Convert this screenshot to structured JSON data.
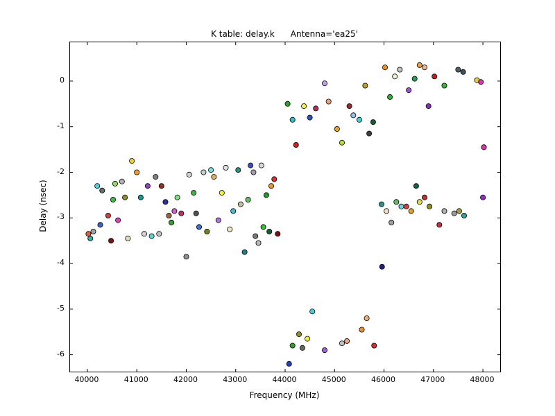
{
  "figure": {
    "title": "K table: delay.k      Antenna='ea25'",
    "xlabel": "Frequency (MHz)",
    "ylabel": "Delay (nsec)"
  },
  "chart_data": {
    "type": "scatter",
    "title": "K table: delay.k      Antenna='ea25'",
    "xlabel": "Frequency (MHz)",
    "ylabel": "Delay (nsec)",
    "xlim": [
      39650,
      48350
    ],
    "ylim": [
      -6.37,
      0.85
    ],
    "xticks": [
      40000,
      41000,
      42000,
      43000,
      44000,
      45000,
      46000,
      47000,
      48000
    ],
    "yticks": [
      0,
      -1,
      -2,
      -3,
      -4,
      -5,
      -6
    ],
    "grid": false,
    "legend": "none",
    "background": "#ffffff",
    "frame_color": "#000000",
    "marker_edge": "#000000",
    "points": [
      [
        40020,
        -3.35,
        "#e06030"
      ],
      [
        40060,
        -3.45,
        "#30b0a0"
      ],
      [
        40120,
        -3.3,
        "#a0a0a0"
      ],
      [
        40200,
        -2.3,
        "#50d0e0"
      ],
      [
        40260,
        -3.15,
        "#4060c0"
      ],
      [
        40300,
        -2.4,
        "#607070"
      ],
      [
        40420,
        -2.95,
        "#d04040"
      ],
      [
        40480,
        -3.5,
        "#801010"
      ],
      [
        40520,
        -2.6,
        "#40c040"
      ],
      [
        40560,
        -2.25,
        "#90e060"
      ],
      [
        40620,
        -3.05,
        "#e040c0"
      ],
      [
        40700,
        -2.2,
        "#b0b0b0"
      ],
      [
        40760,
        -2.55,
        "#909030"
      ],
      [
        40820,
        -3.45,
        "#e0e0c0"
      ],
      [
        40900,
        -1.75,
        "#f0d030"
      ],
      [
        41000,
        -2.0,
        "#f0a030"
      ],
      [
        41080,
        -2.55,
        "#209090"
      ],
      [
        41150,
        -3.35,
        "#d0d0d0"
      ],
      [
        41220,
        -2.3,
        "#9040c0"
      ],
      [
        41300,
        -3.4,
        "#60d0d0"
      ],
      [
        41380,
        -2.1,
        "#808080"
      ],
      [
        41450,
        -3.35,
        "#c0c0c0"
      ],
      [
        41500,
        -2.3,
        "#903020"
      ],
      [
        41580,
        -2.65,
        "#3030a0"
      ],
      [
        41650,
        -2.95,
        "#a06040"
      ],
      [
        41700,
        -3.1,
        "#30a030"
      ],
      [
        41760,
        -2.85,
        "#d060d0"
      ],
      [
        41820,
        -2.55,
        "#80e080"
      ],
      [
        41900,
        -2.9,
        "#c03060"
      ],
      [
        42000,
        -3.85,
        "#909090"
      ],
      [
        42060,
        -2.05,
        "#d0d0e0"
      ],
      [
        42150,
        -2.45,
        "#40b040"
      ],
      [
        42200,
        -2.9,
        "#505050"
      ],
      [
        42260,
        -3.2,
        "#4070d0"
      ],
      [
        42350,
        -2.0,
        "#c0d0d0"
      ],
      [
        42420,
        -3.3,
        "#708020"
      ],
      [
        42500,
        -1.95,
        "#70e0e0"
      ],
      [
        42560,
        -2.1,
        "#e0b060"
      ],
      [
        42650,
        -3.05,
        "#b070e0"
      ],
      [
        42720,
        -2.45,
        "#f0f040"
      ],
      [
        42800,
        -1.9,
        "#e0e0e0"
      ],
      [
        42880,
        -3.25,
        "#f0e0c0"
      ],
      [
        42950,
        -2.85,
        "#40c0d0"
      ],
      [
        43050,
        -1.95,
        "#309080"
      ],
      [
        43100,
        -2.7,
        "#c0c0a0"
      ],
      [
        43180,
        -3.75,
        "#208080"
      ],
      [
        43250,
        -2.6,
        "#60c060"
      ],
      [
        43300,
        -1.85,
        "#4050c0"
      ],
      [
        43360,
        -2.0,
        "#a0a0b0"
      ],
      [
        43400,
        -3.4,
        "#787878"
      ],
      [
        43460,
        -3.55,
        "#b8b8b8"
      ],
      [
        43520,
        -1.85,
        "#d8d8d8"
      ],
      [
        43560,
        -3.2,
        "#30c030"
      ],
      [
        43620,
        -2.5,
        "#20a020"
      ],
      [
        43680,
        -3.3,
        "#106030"
      ],
      [
        43720,
        -2.3,
        "#f09030"
      ],
      [
        43780,
        -2.15,
        "#e03030"
      ],
      [
        43850,
        -3.35,
        "#7a1010"
      ],
      [
        44050,
        -0.5,
        "#30a030"
      ],
      [
        44150,
        -0.85,
        "#30c0c0"
      ],
      [
        44220,
        -1.4,
        "#d02020"
      ],
      [
        44380,
        -0.55,
        "#f0f050"
      ],
      [
        44500,
        -0.8,
        "#3050c0"
      ],
      [
        44620,
        -0.6,
        "#b03060"
      ],
      [
        44800,
        -0.05,
        "#c0a0e0"
      ],
      [
        44880,
        -0.45,
        "#f0a080"
      ],
      [
        45050,
        -1.05,
        "#f0a030"
      ],
      [
        45150,
        -1.35,
        "#b0e030"
      ],
      [
        45300,
        -0.55,
        "#903030"
      ],
      [
        45380,
        -0.75,
        "#90c0f0"
      ],
      [
        45500,
        -0.85,
        "#40d0d0"
      ],
      [
        45620,
        -0.1,
        "#c0a020"
      ],
      [
        45700,
        -1.15,
        "#404040"
      ],
      [
        45780,
        -0.9,
        "#106030"
      ],
      [
        46020,
        0.3,
        "#f09020"
      ],
      [
        46120,
        -0.35,
        "#30b030"
      ],
      [
        46220,
        0.1,
        "#f0f0d0"
      ],
      [
        46320,
        0.25,
        "#c0c0c0"
      ],
      [
        46500,
        -0.2,
        "#a050d0"
      ],
      [
        46620,
        0.05,
        "#20a050"
      ],
      [
        46720,
        0.35,
        "#f0a040"
      ],
      [
        46820,
        0.3,
        "#f0b090"
      ],
      [
        46900,
        -0.55,
        "#8030b0"
      ],
      [
        47020,
        0.1,
        "#c02020"
      ],
      [
        47220,
        -0.1,
        "#40b040"
      ],
      [
        47500,
        0.25,
        "#506060"
      ],
      [
        47600,
        0.2,
        "#405060"
      ],
      [
        47880,
        0.02,
        "#e0d030"
      ],
      [
        47960,
        -0.02,
        "#e030b0"
      ],
      [
        48020,
        -1.45,
        "#e030b0"
      ],
      [
        45950,
        -2.7,
        "#309090"
      ],
      [
        46050,
        -2.85,
        "#f0e0c0"
      ],
      [
        46150,
        -3.1,
        "#a0a0a0"
      ],
      [
        46250,
        -2.65,
        "#60c060"
      ],
      [
        46350,
        -2.75,
        "#70d0e0"
      ],
      [
        46450,
        -2.75,
        "#d04040"
      ],
      [
        46550,
        -2.85,
        "#e0a030"
      ],
      [
        46650,
        -2.3,
        "#106040"
      ],
      [
        46720,
        -2.65,
        "#e0e040"
      ],
      [
        46820,
        -2.55,
        "#c03030"
      ],
      [
        46920,
        -2.75,
        "#909020"
      ],
      [
        47120,
        -3.15,
        "#c03040"
      ],
      [
        47220,
        -2.85,
        "#b0b0b0"
      ],
      [
        47420,
        -2.9,
        "#989898"
      ],
      [
        47520,
        -2.85,
        "#a0a040"
      ],
      [
        47620,
        -2.95,
        "#30a0a0"
      ],
      [
        48000,
        -2.55,
        "#9030c0"
      ],
      [
        44080,
        -6.2,
        "#2040c0"
      ],
      [
        44150,
        -5.8,
        "#30a030"
      ],
      [
        44280,
        -5.55,
        "#909030"
      ],
      [
        44350,
        -5.85,
        "#607060"
      ],
      [
        44450,
        -5.65,
        "#f0f040"
      ],
      [
        44550,
        -5.05,
        "#40d0e0"
      ],
      [
        44800,
        -5.9,
        "#a060d0"
      ],
      [
        45150,
        -5.75,
        "#c0c0c0"
      ],
      [
        45250,
        -5.7,
        "#f0a080"
      ],
      [
        45550,
        -5.45,
        "#f09030"
      ],
      [
        45650,
        -5.2,
        "#f0b070"
      ],
      [
        45800,
        -5.8,
        "#d03030"
      ],
      [
        45960,
        -4.07,
        "#202080"
      ]
    ]
  }
}
